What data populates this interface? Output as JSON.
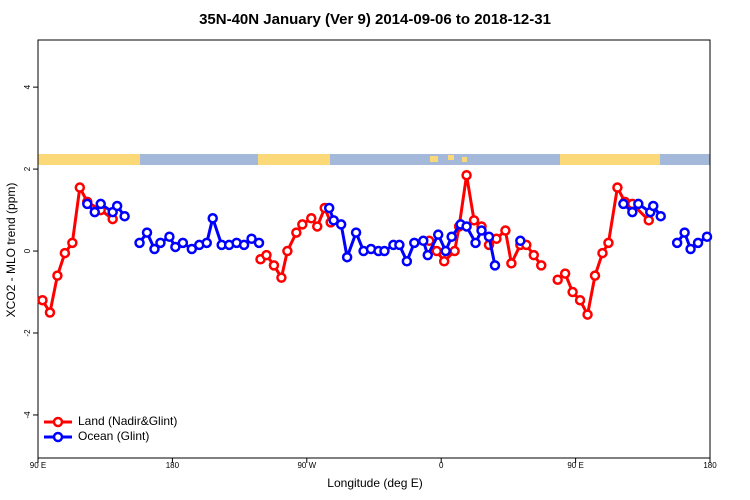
{
  "chart_data": {
    "type": "line",
    "title": "35N-40N January (Ver 9)   2014-09-06 to 2018-12-31",
    "x_label": "Longitude (deg E)",
    "y_label": "XCO2 - MLO trend (ppm)",
    "xlim": [
      90,
      540
    ],
    "ylim": [
      -5.05,
      5.15
    ],
    "xticks": [
      {
        "value": 90,
        "label": "90 E"
      },
      {
        "value": 180,
        "label": "180"
      },
      {
        "value": 270,
        "label": "90 W"
      },
      {
        "value": 360,
        "label": "0"
      },
      {
        "value": 450,
        "label": "90 E"
      },
      {
        "value": 540,
        "label": "180"
      }
    ],
    "yticks": [
      -4,
      -2,
      0,
      2,
      4
    ],
    "legend": "bottom-left",
    "series": [
      {
        "name": "Land (Nadir&Glint)",
        "color": "#ff0000",
        "x": [
          93,
          98,
          103,
          108,
          113,
          118,
          123,
          132,
          140,
          null,
          239,
          243,
          248,
          253,
          257,
          263,
          267,
          273,
          277,
          282,
          286,
          null,
          352,
          357,
          362,
          369,
          372,
          377,
          382,
          387,
          392,
          397,
          403,
          407,
          413,
          417,
          422,
          427,
          null,
          438,
          443,
          448,
          453,
          458,
          463,
          468,
          472,
          478,
          483,
          488,
          499
        ],
        "values": [
          -1.2,
          -1.5,
          -0.6,
          -0.05,
          0.2,
          1.55,
          1.2,
          1.0,
          0.78,
          null,
          -0.2,
          -0.1,
          -0.35,
          -0.65,
          0.0,
          0.45,
          0.65,
          0.8,
          0.6,
          1.05,
          0.7,
          null,
          0.25,
          0.0,
          -0.25,
          0.0,
          0.6,
          1.85,
          0.75,
          0.6,
          0.15,
          0.3,
          0.5,
          -0.3,
          0.15,
          0.15,
          -0.1,
          -0.35,
          null,
          -0.7,
          -0.55,
          -1.0,
          -1.2,
          -1.55,
          -0.6,
          -0.05,
          0.2,
          1.55,
          1.2,
          1.15,
          0.75
        ]
      },
      {
        "name": "Ocean (Glint)",
        "color": "#0000ff",
        "x": [
          123,
          128,
          132,
          140,
          143,
          148,
          null,
          158,
          163,
          168,
          172,
          178,
          182,
          187,
          193,
          198,
          203,
          207,
          213,
          218,
          223,
          228,
          233,
          238,
          null,
          285,
          288,
          293,
          297,
          303,
          308,
          313,
          318,
          322,
          328,
          332,
          337,
          342,
          348,
          351,
          358,
          363,
          367,
          373,
          377,
          383,
          387,
          392,
          396,
          null,
          413,
          null,
          482,
          488,
          492,
          500,
          502,
          507,
          null,
          518,
          523,
          527,
          532,
          538
        ],
        "values": [
          1.15,
          0.95,
          1.15,
          0.95,
          1.1,
          0.85,
          null,
          0.2,
          0.45,
          0.05,
          0.2,
          0.35,
          0.1,
          0.2,
          0.05,
          0.15,
          0.2,
          0.8,
          0.15,
          0.15,
          0.2,
          0.15,
          0.3,
          0.2,
          null,
          1.05,
          0.75,
          0.65,
          -0.15,
          0.45,
          0.0,
          0.05,
          0.0,
          0.0,
          0.15,
          0.15,
          -0.25,
          0.2,
          0.25,
          -0.1,
          0.4,
          0.0,
          0.35,
          0.65,
          0.6,
          0.2,
          0.5,
          0.35,
          -0.35,
          null,
          0.25,
          null,
          1.15,
          0.95,
          1.15,
          0.95,
          1.1,
          0.85,
          null,
          0.2,
          0.45,
          0.05,
          0.2,
          0.35
        ]
      }
    ]
  }
}
